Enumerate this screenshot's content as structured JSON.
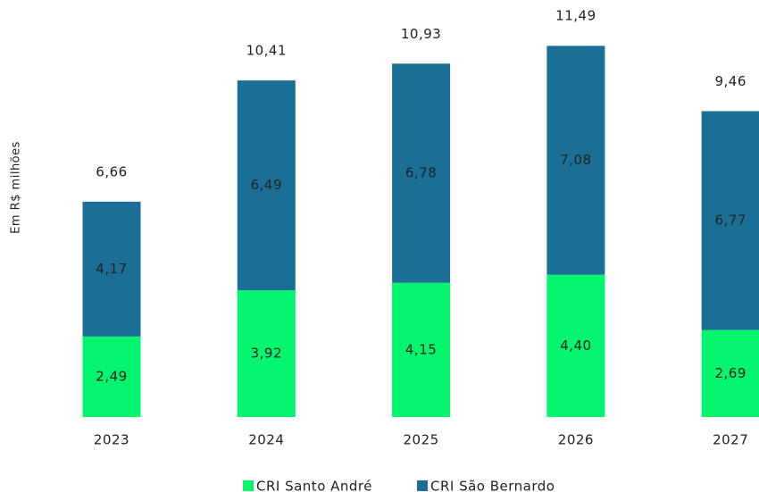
{
  "chart_data": {
    "type": "stacked_bar",
    "y_axis_label": "Em R$ milhões",
    "categories": [
      "2023",
      "2024",
      "2025",
      "2026",
      "2027"
    ],
    "series": [
      {
        "name": "CRI Santo André",
        "color": "#03f56e",
        "values": [
          2.49,
          3.92,
          4.15,
          4.4,
          2.69
        ],
        "value_labels": [
          "2,49",
          "3,92",
          "4,15",
          "4,40",
          "2,69"
        ]
      },
      {
        "name": "CRI São Bernardo",
        "color": "#1b6f96",
        "values": [
          4.17,
          6.49,
          6.78,
          7.08,
          6.77
        ],
        "value_labels": [
          "4,17",
          "6,49",
          "6,78",
          "7,08",
          "6,77"
        ]
      }
    ],
    "totals": [
      6.66,
      10.41,
      10.93,
      11.49,
      9.46
    ],
    "total_labels": [
      "6,66",
      "10,41",
      "10,93",
      "11,49",
      "9,46"
    ]
  }
}
